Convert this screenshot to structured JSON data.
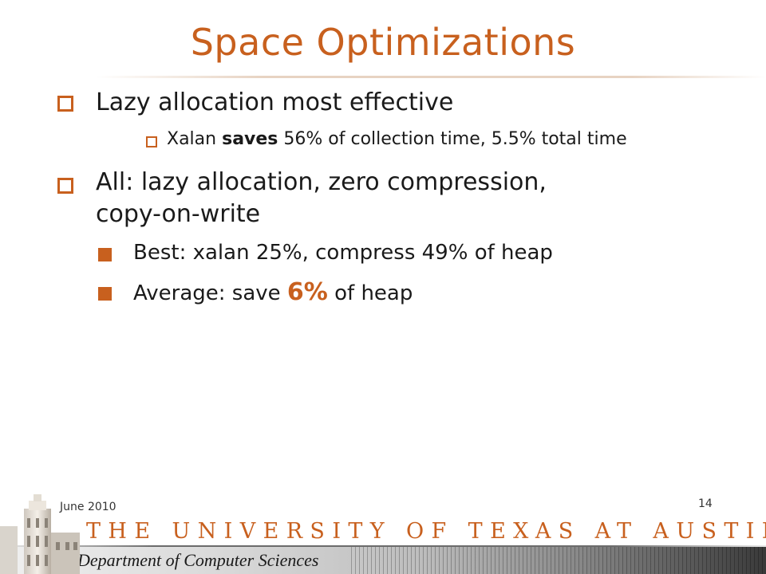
{
  "slide": {
    "title": "Space Optimizations",
    "bullets": [
      {
        "text": "Lazy allocation most effective"
      },
      {
        "sub": {
          "pre": "Xalan ",
          "bold": "saves",
          "post": " 56% of collection time, 5.5% total time"
        }
      },
      {
        "line1": "All: lazy allocation, zero compression,",
        "line2": "copy-on-write"
      },
      {
        "text": "Best: xalan 25%, compress 49% of heap"
      },
      {
        "pre": "Average: save ",
        "highlight": "6%",
        "post": " of heap"
      }
    ]
  },
  "footer": {
    "date": "June 2010",
    "page": "14",
    "university": "THE UNIVERSITY OF TEXAS AT AUSTIN",
    "department": "Department of Computer Sciences"
  },
  "colors": {
    "accent": "#c8601e",
    "text": "#1a1a1a"
  },
  "icons": {
    "logo": "ut-tower-icon"
  }
}
